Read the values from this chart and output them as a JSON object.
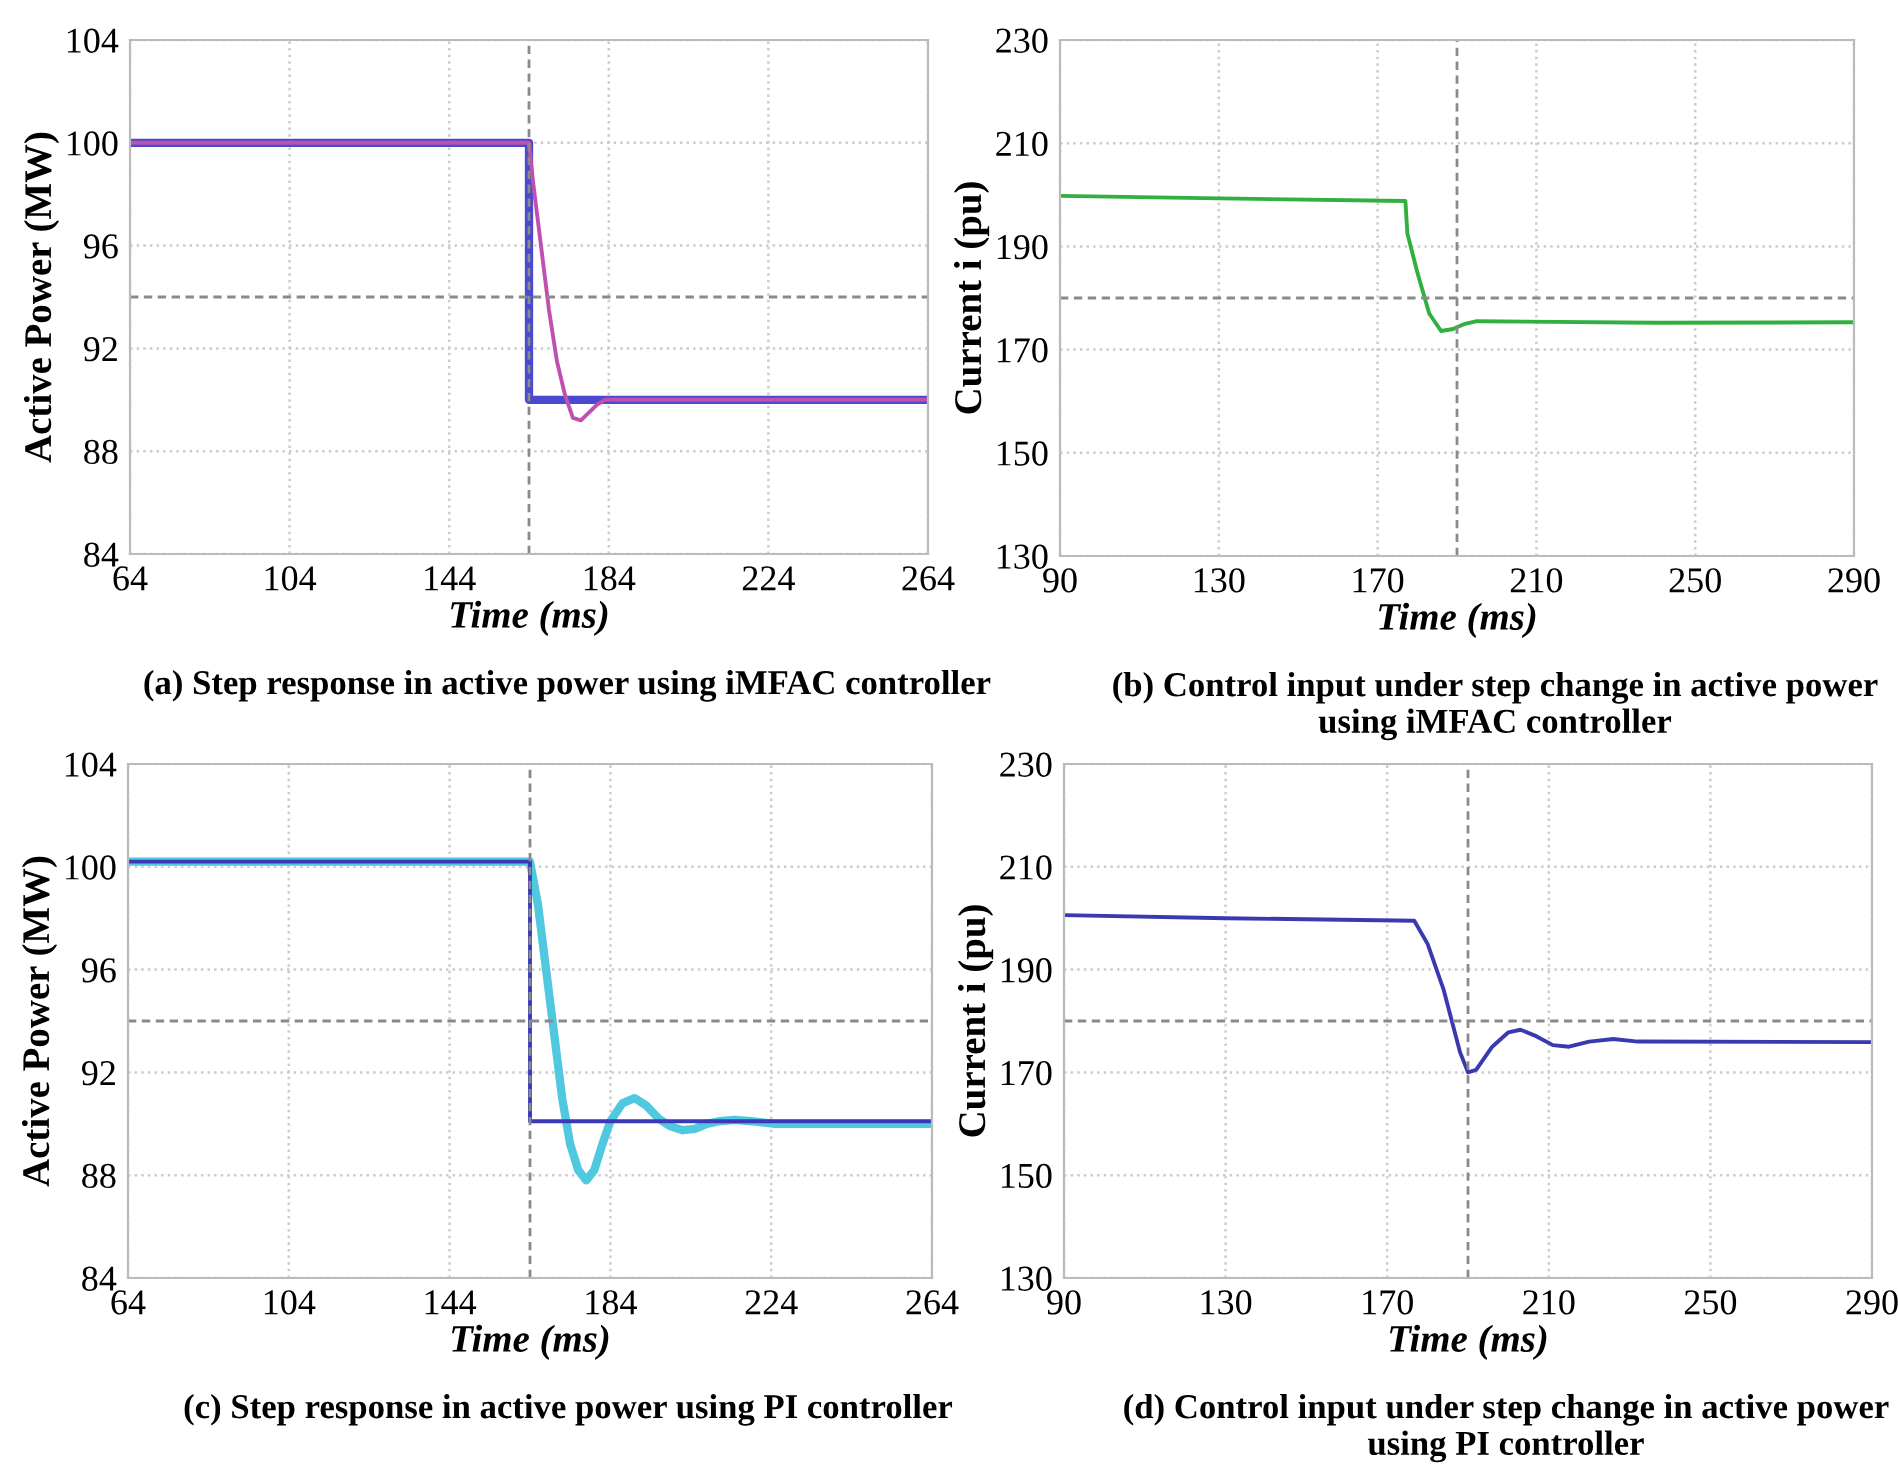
{
  "chart_data": [
    {
      "type": "line",
      "title": "(a) Step response in active power using iMFAC controller",
      "xlabel": "Time (ms)",
      "ylabel": "Active Power (MW)",
      "xlim": [
        64,
        264
      ],
      "ylim": [
        84,
        104
      ],
      "xticks": [
        64,
        104,
        144,
        184,
        224,
        264
      ],
      "yticks": [
        84,
        88,
        92,
        96,
        100,
        104
      ],
      "grid": true,
      "line_style": "solid",
      "marker": "none",
      "ref_lines": [
        {
          "axis": "x",
          "value": 164,
          "color": "#8a8a8a",
          "line_style": "dashed"
        },
        {
          "axis": "y",
          "value": 94,
          "color": "#8a8a8a",
          "line_style": "dashed"
        }
      ],
      "series": [
        {
          "color": "#4a4ad0",
          "x": [
            64,
            164,
            164,
            264
          ],
          "values": [
            100,
            100,
            90,
            90
          ]
        },
        {
          "color": "#c050b0",
          "x": [
            64,
            164,
            165,
            167,
            169,
            171,
            173,
            175,
            177,
            179,
            181,
            183,
            264
          ],
          "values": [
            100,
            100,
            98.5,
            96,
            93.5,
            91.5,
            90.2,
            89.3,
            89.2,
            89.5,
            89.8,
            90,
            90
          ]
        }
      ]
    },
    {
      "type": "line",
      "title": "(b) Control input under step change in active power using iMFAC controller",
      "xlabel": "Time (ms)",
      "ylabel": "Current i (pu)",
      "xlim": [
        90,
        290
      ],
      "ylim": [
        130,
        230
      ],
      "xticks": [
        90,
        130,
        170,
        210,
        250,
        290
      ],
      "yticks": [
        130,
        150,
        170,
        190,
        210,
        230
      ],
      "grid": true,
      "line_style": "solid",
      "marker": "none",
      "ref_lines": [
        {
          "axis": "x",
          "value": 190,
          "color": "#8a8a8a",
          "line_style": "dashed"
        },
        {
          "axis": "y",
          "value": 180,
          "color": "#8a8a8a",
          "line_style": "dashed"
        }
      ],
      "series": [
        {
          "color": "#30b040",
          "x": [
            90,
            130,
            177,
            177.5,
            180,
            183,
            186,
            189,
            192,
            195,
            240,
            290
          ],
          "values": [
            199.8,
            199.3,
            198.8,
            192.5,
            185,
            177,
            173.6,
            174,
            175,
            175.5,
            175.2,
            175.3
          ]
        }
      ]
    },
    {
      "type": "line",
      "title": "(c) Step response in active power using PI controller",
      "xlabel": "Time (ms)",
      "ylabel": "Active Power (MW)",
      "xlim": [
        64,
        264
      ],
      "ylim": [
        84,
        104
      ],
      "xticks": [
        64,
        104,
        144,
        184,
        224,
        264
      ],
      "yticks": [
        84,
        88,
        92,
        96,
        100,
        104
      ],
      "grid": true,
      "line_style": "solid",
      "marker": "none",
      "ref_lines": [
        {
          "axis": "x",
          "value": 164,
          "color": "#8a8a8a",
          "line_style": "dashed"
        },
        {
          "axis": "y",
          "value": 94,
          "color": "#8a8a8a",
          "line_style": "dashed"
        }
      ],
      "series": [
        {
          "color": "#50c8e0",
          "x": [
            64,
            164,
            166,
            168,
            170,
            172,
            174,
            176,
            178,
            180,
            182,
            184,
            187,
            190,
            193,
            196,
            199,
            202,
            205,
            208,
            211,
            215,
            219,
            225,
            264
          ],
          "values": [
            100.2,
            100.2,
            98.5,
            96,
            93.5,
            91,
            89.2,
            88.2,
            87.8,
            88.2,
            89.2,
            90.1,
            90.8,
            91,
            90.7,
            90.2,
            89.9,
            89.75,
            89.8,
            90,
            90.1,
            90.15,
            90.1,
            90,
            90
          ]
        },
        {
          "color": "#3a3ab8",
          "x": [
            64,
            164,
            164,
            264
          ],
          "values": [
            100.2,
            100.2,
            90.1,
            90.1
          ]
        }
      ]
    },
    {
      "type": "line",
      "title": "(d) Control input under step change in active power using PI controller",
      "xlabel": "Time (ms)",
      "ylabel": "Current i (pu)",
      "xlim": [
        90,
        290
      ],
      "ylim": [
        130,
        230
      ],
      "xticks": [
        90,
        130,
        170,
        210,
        250,
        290
      ],
      "yticks": [
        130,
        150,
        170,
        190,
        210,
        230
      ],
      "grid": true,
      "line_style": "solid",
      "marker": "none",
      "ref_lines": [
        {
          "axis": "x",
          "value": 190,
          "color": "#8a8a8a",
          "line_style": "dashed"
        },
        {
          "axis": "y",
          "value": 180,
          "color": "#8a8a8a",
          "line_style": "dashed"
        }
      ],
      "series": [
        {
          "color": "#3a3ab0",
          "x": [
            90,
            130,
            176.7,
            180,
            184,
            188,
            190,
            192,
            196,
            200,
            203,
            207,
            211,
            215,
            220,
            226,
            232,
            290
          ],
          "values": [
            200.6,
            200,
            199.5,
            195,
            186,
            174,
            170,
            170.5,
            175,
            177.8,
            178.3,
            177,
            175.3,
            175,
            176,
            176.5,
            176,
            175.9
          ]
        }
      ]
    }
  ]
}
